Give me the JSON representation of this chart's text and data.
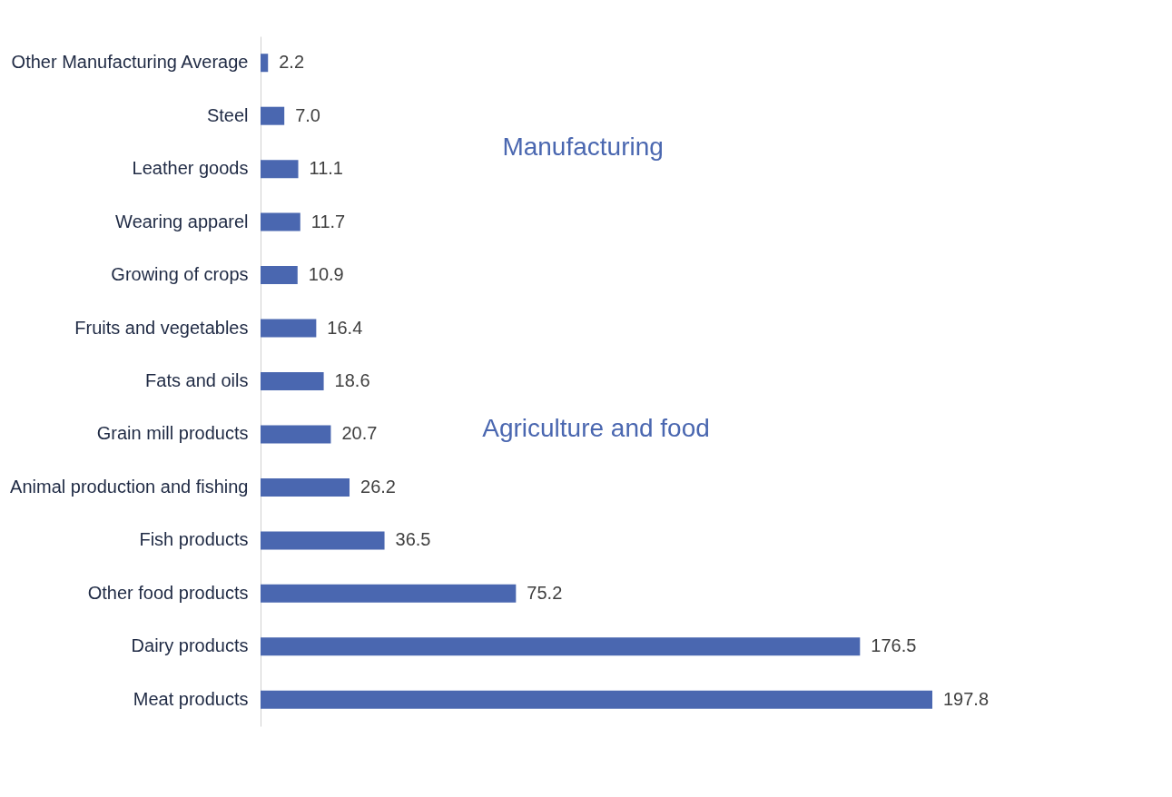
{
  "chart_data": {
    "type": "bar",
    "orientation": "horizontal",
    "categories": [
      "Other Manufacturing Average",
      "Steel",
      "Leather goods",
      "Wearing apparel",
      "Growing of crops",
      "Fruits and vegetables",
      "Fats and oils",
      "Grain mill products",
      "Animal production and fishing",
      "Fish products",
      "Other food products",
      "Dairy products",
      "Meat products"
    ],
    "values": [
      2.2,
      7.0,
      11.1,
      11.7,
      10.9,
      16.4,
      18.6,
      20.7,
      26.2,
      36.5,
      75.2,
      176.5,
      197.8
    ],
    "color": "#4a67b0",
    "value_labels": [
      "2.2",
      "7.0",
      "11.1",
      "11.7",
      "10.9",
      "16.4",
      "18.6",
      "20.7",
      "26.2",
      "36.5",
      "75.2",
      "176.5",
      "197.8"
    ],
    "annotations": [
      "Manufacturing",
      "Agriculture and food"
    ]
  }
}
